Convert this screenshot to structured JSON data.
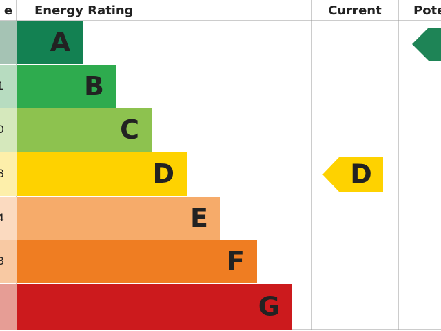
{
  "header": {
    "score": "e",
    "rating": "Energy Rating",
    "current": "Current",
    "potential": "Pote"
  },
  "rows": [
    {
      "letter": "A"
    },
    {
      "letter": "B",
      "score": "1"
    },
    {
      "letter": "C",
      "score": "0"
    },
    {
      "letter": "D",
      "score": "8"
    },
    {
      "letter": "E",
      "score": "4"
    },
    {
      "letter": "F",
      "score": "8"
    },
    {
      "letter": "G"
    }
  ],
  "current": {
    "letter": "D"
  }
}
